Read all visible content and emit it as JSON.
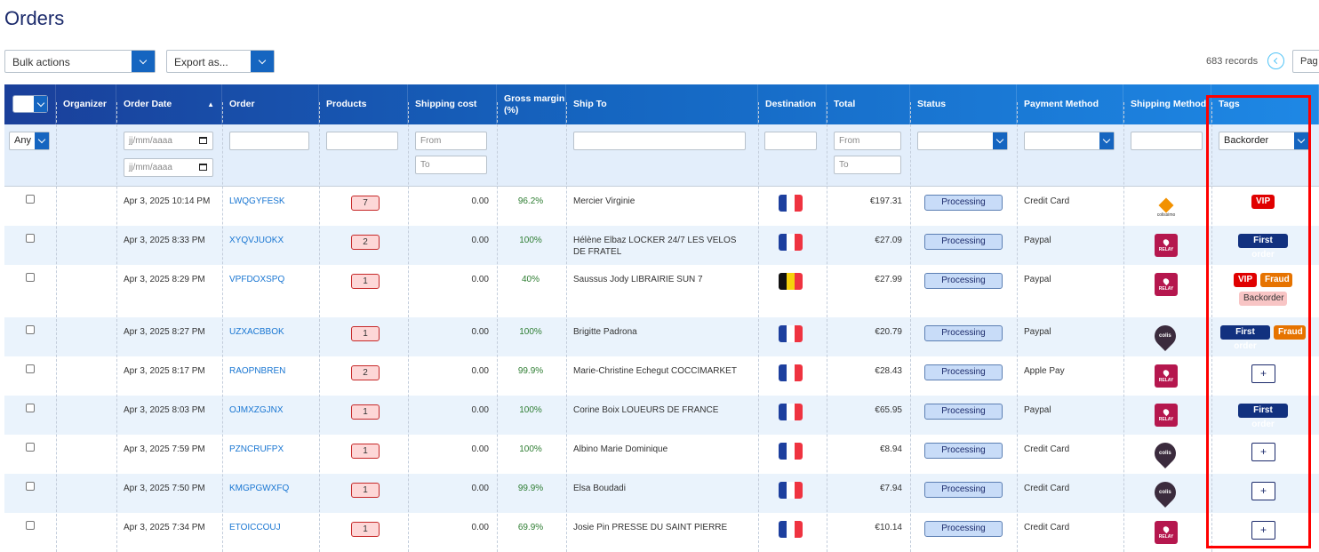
{
  "page": {
    "title": "Orders"
  },
  "toolbar": {
    "bulk_actions": "Bulk actions",
    "export_as": "Export as...",
    "records": "683 records",
    "page_label": "Pag"
  },
  "columns": {
    "organizer": "Organizer",
    "order_date": "Order Date",
    "order": "Order",
    "products": "Products",
    "shipping_cost": "Shipping cost",
    "gross_margin": "Gross margin (%)",
    "ship_to": "Ship To",
    "destination": "Destination",
    "total": "Total",
    "status": "Status",
    "payment_method": "Payment Method",
    "shipping_method": "Shipping Method",
    "tags": "Tags"
  },
  "filters": {
    "any": "Any",
    "date_placeholder": "jj/mm/aaaa",
    "from": "From",
    "to": "To",
    "tags_value": "Backorder"
  },
  "rows": [
    {
      "date": "Apr 3, 2025 10:14 PM",
      "order": "LWQGYFESK",
      "products": "7",
      "shipping": "0.00",
      "margin": "96.2%",
      "ship_to": "Mercier Virginie",
      "country": "FR",
      "total": "€197.31",
      "status": "Processing",
      "payment": "Credit Card",
      "shipping_method": "colissimo",
      "shipping_text": "colissimo",
      "tags": [
        "VIP"
      ]
    },
    {
      "date": "Apr 3, 2025 8:33 PM",
      "order": "XYQVJUOKX",
      "products": "2",
      "shipping": "0.00",
      "margin": "100%",
      "ship_to": "Hélène Elbaz LOCKER 24/7 LES VELOS DE FRATEL",
      "country": "FR",
      "total": "€27.09",
      "status": "Processing",
      "payment": "Paypal",
      "shipping_method": "relay",
      "shipping_text": "RELAY",
      "tags": [
        "First order"
      ]
    },
    {
      "date": "Apr 3, 2025 8:29 PM",
      "order": "VPFDOXSPQ",
      "products": "1",
      "shipping": "0.00",
      "margin": "40%",
      "ship_to": "Saussus Jody LIBRAIRIE SUN 7",
      "country": "BE",
      "total": "€27.99",
      "status": "Processing",
      "payment": "Paypal",
      "shipping_method": "relay",
      "shipping_text": "RELAY",
      "tags": [
        "VIP",
        "Fraud",
        "Backorder"
      ]
    },
    {
      "date": "Apr 3, 2025 8:27 PM",
      "order": "UZXACBBOK",
      "products": "1",
      "shipping": "0.00",
      "margin": "100%",
      "ship_to": "Brigitte Padrona",
      "country": "FR",
      "total": "€20.79",
      "status": "Processing",
      "payment": "Paypal",
      "shipping_method": "colis",
      "shipping_text": "colis",
      "tags": [
        "First order",
        "Fraud"
      ]
    },
    {
      "date": "Apr 3, 2025 8:17 PM",
      "order": "RAOPNBREN",
      "products": "2",
      "shipping": "0.00",
      "margin": "99.9%",
      "ship_to": "Marie-Christine Echegut COCCIMARKET",
      "country": "FR",
      "total": "€28.43",
      "status": "Processing",
      "payment": "Apple Pay",
      "shipping_method": "relay",
      "shipping_text": "RELAY",
      "tags": []
    },
    {
      "date": "Apr 3, 2025 8:03 PM",
      "order": "OJMXZGJNX",
      "products": "1",
      "shipping": "0.00",
      "margin": "100%",
      "ship_to": "Corine Boix LOUEURS DE FRANCE",
      "country": "FR",
      "total": "€65.95",
      "status": "Processing",
      "payment": "Paypal",
      "shipping_method": "relay",
      "shipping_text": "RELAY",
      "tags": [
        "First order"
      ]
    },
    {
      "date": "Apr 3, 2025 7:59 PM",
      "order": "PZNCRUFPX",
      "products": "1",
      "shipping": "0.00",
      "margin": "100%",
      "ship_to": "Albino Marie Dominique",
      "country": "FR",
      "total": "€8.94",
      "status": "Processing",
      "payment": "Credit Card",
      "shipping_method": "colis",
      "shipping_text": "colis",
      "tags": []
    },
    {
      "date": "Apr 3, 2025 7:50 PM",
      "order": "KMGPGWXFQ",
      "products": "1",
      "shipping": "0.00",
      "margin": "99.9%",
      "ship_to": "Elsa Boudadi",
      "country": "FR",
      "total": "€7.94",
      "status": "Processing",
      "payment": "Credit Card",
      "shipping_method": "colis",
      "shipping_text": "colis",
      "tags": []
    },
    {
      "date": "Apr 3, 2025 7:34 PM",
      "order": "ETOICCOUJ",
      "products": "1",
      "shipping": "0.00",
      "margin": "69.9%",
      "ship_to": "Josie Pin PRESSE DU SAINT PIERRE",
      "country": "FR",
      "total": "€10.14",
      "status": "Processing",
      "payment": "Credit Card",
      "shipping_method": "relay",
      "shipping_text": "RELAY",
      "tags": []
    }
  ],
  "add_tag_label": "+",
  "colors": {
    "header_start": "#1a3f9a",
    "header_end": "#1e88e5",
    "vip": "#e00000",
    "first_order": "#12317f",
    "fraud": "#e67300",
    "backorder": "#f8c5c5",
    "highlight": "#ff0000"
  }
}
